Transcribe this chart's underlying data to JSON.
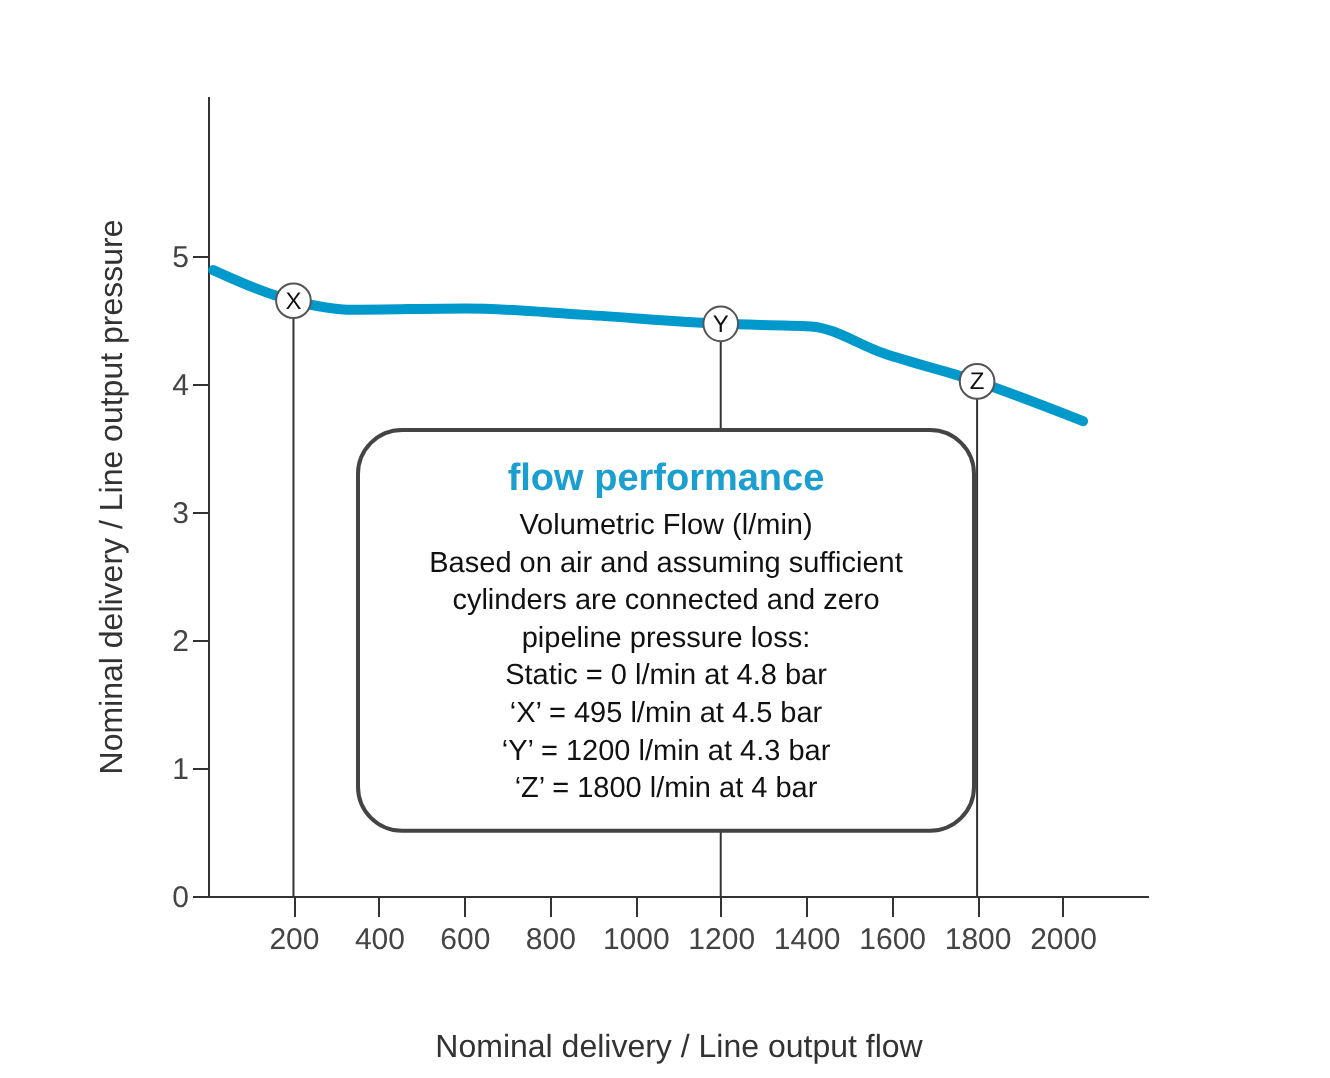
{
  "chart_data": {
    "type": "line",
    "title": "flow performance",
    "xlabel": "Nominal delivery / Line output flow",
    "ylabel": "Nominal delivery / Line output pressure",
    "x": [
      12,
      200,
      339,
      603,
      883,
      1200,
      1411,
      1581,
      1800,
      2048
    ],
    "series": [
      {
        "color": "#0099cc",
        "values": [
          4.89,
          4.65,
          4.58,
          4.59,
          4.54,
          4.47,
          4.45,
          4.24,
          4.02,
          3.71
        ]
      }
    ],
    "xlim": [
      0,
      2200
    ],
    "xticks": [
      200,
      400,
      600,
      800,
      1000,
      1200,
      1400,
      1600,
      1800,
      2000
    ],
    "ylim": [
      0,
      6.25
    ],
    "yticks": [
      0,
      1,
      2,
      3,
      4,
      5
    ],
    "grid": false,
    "marker": "none",
    "line_style": "solid",
    "ref_lines": [
      {
        "axis": "x",
        "value": 200
      },
      {
        "axis": "x",
        "value": 1200
      },
      {
        "axis": "x",
        "value": 1800
      }
    ],
    "annotations": [
      {
        "text": "X",
        "x": 200,
        "y": 4.65
      },
      {
        "text": "Y",
        "x": 1200,
        "y": 4.47
      },
      {
        "text": "Z",
        "x": 1800,
        "y": 4.02
      },
      "Volumetric Flow (l/min)",
      "Based on air and assuming sufficient",
      "cylinders are connected and zero",
      "pipeline pressure loss:",
      "Static = 0 l/min at 4.8 bar",
      "‘X’ = 495 l/min at 4.5 bar",
      "‘Y’ = 1200 l/min at 4.3 bar",
      "‘Z’ = 1800 l/min at 4 bar"
    ]
  }
}
